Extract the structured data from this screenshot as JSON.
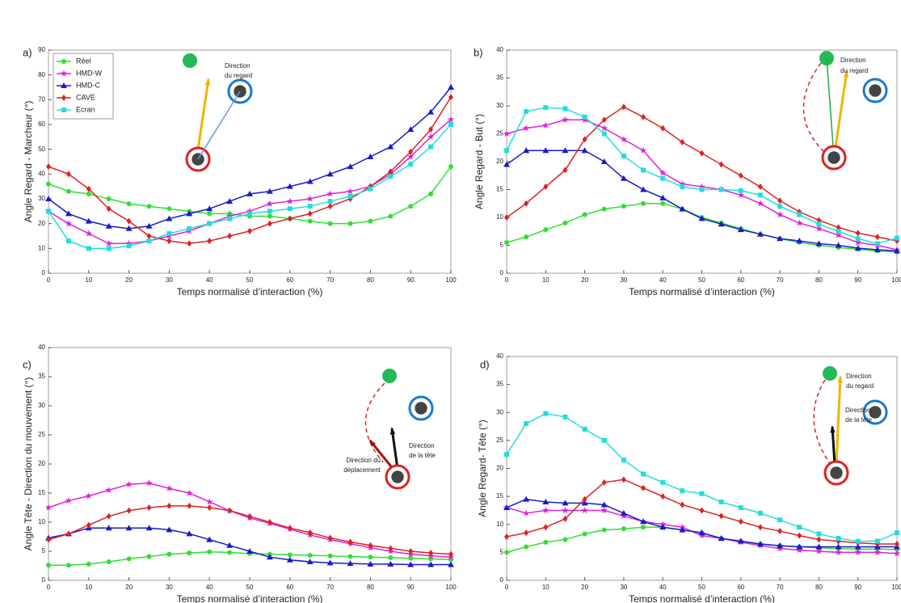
{
  "chart_data": [
    {
      "type": "line",
      "panel": "a)",
      "ylabel": "Angle Regard - Marcheur (°)",
      "xlabel": "Temps normalisé d’interaction (%)",
      "x": [
        0,
        5,
        10,
        15,
        20,
        25,
        30,
        35,
        40,
        45,
        50,
        55,
        60,
        65,
        70,
        75,
        80,
        85,
        90,
        95,
        100
      ],
      "xlim": [
        0,
        100
      ],
      "xticks": [
        0,
        10,
        20,
        30,
        40,
        50,
        60,
        70,
        80,
        90,
        100
      ],
      "ylim": [
        0,
        90
      ],
      "yticks": [
        0,
        10,
        20,
        30,
        40,
        50,
        60,
        70,
        80,
        90
      ],
      "legend": "upper left",
      "annotations": [
        [
          "Direction",
          "du regard"
        ]
      ],
      "series": [
        {
          "name": "Réel",
          "color": "#33dd33",
          "marker": "circle",
          "values": [
            36,
            33,
            32,
            30,
            28,
            27,
            26,
            25,
            24,
            24,
            23,
            23,
            22,
            21,
            20,
            20,
            21,
            23,
            27,
            32,
            43
          ]
        },
        {
          "name": "HMD-W",
          "color": "#dd22dd",
          "marker": "star",
          "values": [
            25,
            20,
            16,
            12,
            12,
            13,
            15,
            17,
            20,
            23,
            25,
            28,
            29,
            30,
            32,
            33,
            35,
            40,
            47,
            55,
            62
          ]
        },
        {
          "name": "HMD-C",
          "color": "#1a1acc",
          "marker": "triangle",
          "values": [
            30,
            24,
            21,
            19,
            18,
            19,
            22,
            24,
            26,
            29,
            32,
            33,
            35,
            37,
            40,
            43,
            47,
            51,
            58,
            65,
            75
          ]
        },
        {
          "name": "CAVE",
          "color": "#dd2222",
          "marker": "diamond",
          "values": [
            43,
            40,
            34,
            26,
            21,
            15,
            13,
            12,
            13,
            15,
            17,
            20,
            22,
            24,
            27,
            30,
            35,
            41,
            49,
            58,
            71
          ]
        },
        {
          "name": "Ecran",
          "color": "#22dddd",
          "marker": "square",
          "values": [
            25,
            13,
            10,
            10,
            11,
            13,
            16,
            18,
            20,
            22,
            24,
            25,
            26,
            27,
            29,
            31,
            34,
            39,
            44,
            51,
            60
          ]
        }
      ]
    },
    {
      "type": "line",
      "panel": "b)",
      "ylabel": "Angle Regard - But (°)",
      "xlabel": "Temps normalisé d’interaction (%)",
      "x": [
        0,
        5,
        10,
        15,
        20,
        25,
        30,
        35,
        40,
        45,
        50,
        55,
        60,
        65,
        70,
        75,
        80,
        85,
        90,
        95,
        100
      ],
      "xlim": [
        0,
        100
      ],
      "xticks": [
        0,
        10,
        20,
        30,
        40,
        50,
        60,
        70,
        80,
        90,
        100
      ],
      "ylim": [
        0,
        40
      ],
      "yticks": [
        0,
        5,
        10,
        15,
        20,
        25,
        30,
        35,
        40
      ],
      "annotations": [
        [
          "Direction",
          "du regard"
        ]
      ],
      "series": [
        {
          "color": "#33dd33",
          "marker": "circle",
          "values": [
            5.5,
            6.5,
            7.8,
            9,
            10.5,
            11.5,
            12,
            12.5,
            12.5,
            11.5,
            10,
            9,
            8,
            7,
            6.2,
            5.5,
            5,
            4.6,
            4.3,
            4,
            3.8
          ]
        },
        {
          "color": "#dd22dd",
          "marker": "star",
          "values": [
            25,
            26,
            26.5,
            27.5,
            27.5,
            26,
            24,
            22,
            18,
            16,
            15.5,
            15,
            14,
            12.5,
            10.5,
            9,
            8,
            6.8,
            5.5,
            5,
            4.2
          ]
        },
        {
          "color": "#1a1acc",
          "marker": "triangle",
          "values": [
            19.5,
            22,
            22,
            22,
            22,
            20,
            17,
            15,
            13.5,
            11.5,
            9.8,
            8.8,
            7.8,
            7,
            6.2,
            5.8,
            5.3,
            5,
            4.5,
            4.2,
            4
          ]
        },
        {
          "color": "#dd2222",
          "marker": "diamond",
          "values": [
            10,
            12.5,
            15.5,
            18.5,
            24,
            27.5,
            29.8,
            28,
            26,
            23.5,
            21.5,
            19.5,
            17.5,
            15.5,
            13,
            11,
            9.5,
            8.2,
            7.2,
            6.5,
            5.8
          ]
        },
        {
          "color": "#22dddd",
          "marker": "square",
          "values": [
            22,
            29,
            29.7,
            29.5,
            28,
            25,
            21,
            18.5,
            17,
            15.5,
            15,
            15,
            14.8,
            14,
            12,
            10.5,
            8.8,
            7.5,
            6.2,
            5.3,
            6.3
          ]
        }
      ]
    },
    {
      "type": "line",
      "panel": "c)",
      "ylabel": "Angle Tête - Direction du mouvement (°)",
      "xlabel": "Temps normalisé d’interaction (%)",
      "x": [
        0,
        5,
        10,
        15,
        20,
        25,
        30,
        35,
        40,
        45,
        50,
        55,
        60,
        65,
        70,
        75,
        80,
        85,
        90,
        95,
        100
      ],
      "xlim": [
        0,
        100
      ],
      "xticks": [
        0,
        10,
        20,
        30,
        40,
        50,
        60,
        70,
        80,
        90,
        100
      ],
      "ylim": [
        0,
        40
      ],
      "yticks": [
        0,
        5,
        10,
        15,
        20,
        25,
        30,
        35,
        40
      ],
      "annotations": [
        [
          "Direction",
          "de la tête"
        ],
        [
          "Direction du",
          "déplacement"
        ]
      ],
      "series": [
        {
          "color": "#33dd33",
          "marker": "circle",
          "values": [
            2.6,
            2.6,
            2.8,
            3.2,
            3.7,
            4.1,
            4.5,
            4.7,
            4.9,
            4.8,
            4.6,
            4.5,
            4.4,
            4.3,
            4.2,
            4.1,
            4,
            3.9,
            3.8,
            3.7,
            3.6
          ]
        },
        {
          "color": "#dd22dd",
          "marker": "star",
          "values": [
            12.5,
            13.7,
            14.5,
            15.5,
            16.5,
            16.7,
            15.8,
            15,
            13.5,
            12,
            10.7,
            9.8,
            8.8,
            7.8,
            7,
            6.3,
            5.6,
            5,
            4.5,
            4.2,
            4
          ]
        },
        {
          "color": "#1a1acc",
          "marker": "triangle",
          "values": [
            7.3,
            8,
            9,
            9,
            9,
            9,
            8.7,
            8,
            7,
            6,
            5,
            4,
            3.5,
            3.2,
            3,
            2.9,
            2.8,
            2.8,
            2.7,
            2.7,
            2.7
          ]
        },
        {
          "color": "#dd2222",
          "marker": "diamond",
          "values": [
            7,
            8,
            9.5,
            11,
            12,
            12.5,
            12.8,
            12.8,
            12.5,
            12,
            11,
            10,
            9,
            8.2,
            7.3,
            6.6,
            6,
            5.5,
            5,
            4.7,
            4.5
          ]
        }
      ]
    },
    {
      "type": "line",
      "panel": "d)",
      "ylabel": "Angle Regard- Tête (°)",
      "xlabel": "Temps normalisé d’interaction (%)",
      "x": [
        0,
        5,
        10,
        15,
        20,
        25,
        30,
        35,
        40,
        45,
        50,
        55,
        60,
        65,
        70,
        75,
        80,
        85,
        90,
        95,
        100
      ],
      "xlim": [
        0,
        100
      ],
      "xticks": [
        0,
        10,
        20,
        30,
        40,
        50,
        60,
        70,
        80,
        90,
        100
      ],
      "ylim": [
        0,
        40
      ],
      "yticks": [
        0,
        5,
        10,
        15,
        20,
        25,
        30,
        35,
        40
      ],
      "annotations": [
        [
          "Direction",
          "du regard"
        ],
        [
          "Direction",
          "de la tête"
        ]
      ],
      "series": [
        {
          "color": "#33dd33",
          "marker": "circle",
          "values": [
            5,
            6,
            6.8,
            7.3,
            8.3,
            9,
            9.2,
            9.5,
            9.5,
            9,
            8.5,
            7.5,
            7,
            6.5,
            6.2,
            6,
            5.8,
            5.7,
            5.6,
            5.6,
            5.5
          ]
        },
        {
          "color": "#dd22dd",
          "marker": "star",
          "values": [
            13,
            12,
            12.5,
            12.5,
            12.5,
            12.5,
            11.5,
            10.5,
            10,
            9.5,
            8,
            7.5,
            6.8,
            6.2,
            5.7,
            5.4,
            5.2,
            5,
            5,
            5,
            4.8
          ]
        },
        {
          "color": "#1a1acc",
          "marker": "triangle",
          "values": [
            13,
            14.5,
            14,
            13.8,
            13.8,
            13.5,
            12,
            10.5,
            9.5,
            9,
            8.5,
            7.5,
            7,
            6.5,
            6.2,
            6,
            6,
            6,
            6,
            6,
            6
          ]
        },
        {
          "color": "#dd2222",
          "marker": "diamond",
          "values": [
            7.8,
            8.5,
            9.5,
            11,
            14.5,
            17.5,
            18,
            16.5,
            15,
            13.5,
            12.5,
            11.5,
            10.5,
            9.5,
            8.8,
            8,
            7.3,
            7,
            6.7,
            6.5,
            6.5
          ]
        },
        {
          "color": "#22dddd",
          "marker": "square",
          "values": [
            22.5,
            28,
            29.8,
            29.2,
            27,
            25,
            21.5,
            19,
            17.5,
            16,
            15.5,
            14,
            13,
            12,
            10.8,
            9.5,
            8.3,
            7.5,
            7,
            7,
            8.5
          ]
        }
      ]
    }
  ]
}
